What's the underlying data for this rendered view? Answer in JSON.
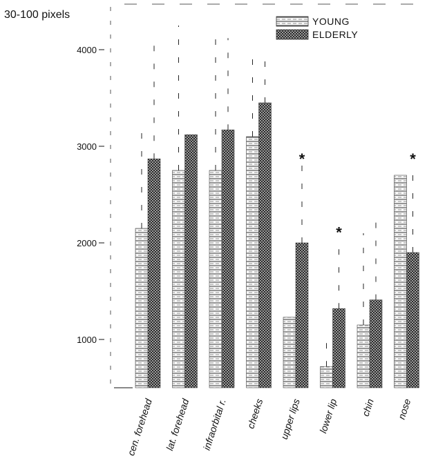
{
  "chart_data": {
    "type": "bar",
    "ylabel": "30-100 pixels",
    "yticks": [
      1000,
      2000,
      3000,
      4000
    ],
    "ylim": [
      500,
      4400
    ],
    "categories": [
      "cen. forehead",
      "lat. forehead",
      "infraorbital r.",
      "cheeks",
      "upper lips",
      "lower lip",
      "chin",
      "nose"
    ],
    "series": [
      {
        "name": "YOUNG",
        "values": [
          2150,
          2750,
          2750,
          3100,
          1230,
          720,
          1150,
          2700
        ],
        "error": [
          1000,
          1500,
          1450,
          800,
          0,
          300,
          950,
          0
        ],
        "color": "#f2f2f2"
      },
      {
        "name": "ELDERLY",
        "values": [
          2870,
          3120,
          3170,
          3450,
          2000,
          1320,
          1410,
          1900
        ],
        "error": [
          1200,
          0,
          950,
          500,
          800,
          720,
          900,
          900
        ],
        "color": "#7a7a7a"
      }
    ],
    "significance": [
      {
        "category": "upper lips",
        "label": "*"
      },
      {
        "category": "lower lip",
        "label": "*"
      },
      {
        "category": "nose",
        "label": "*"
      }
    ],
    "legend": "top-right"
  }
}
